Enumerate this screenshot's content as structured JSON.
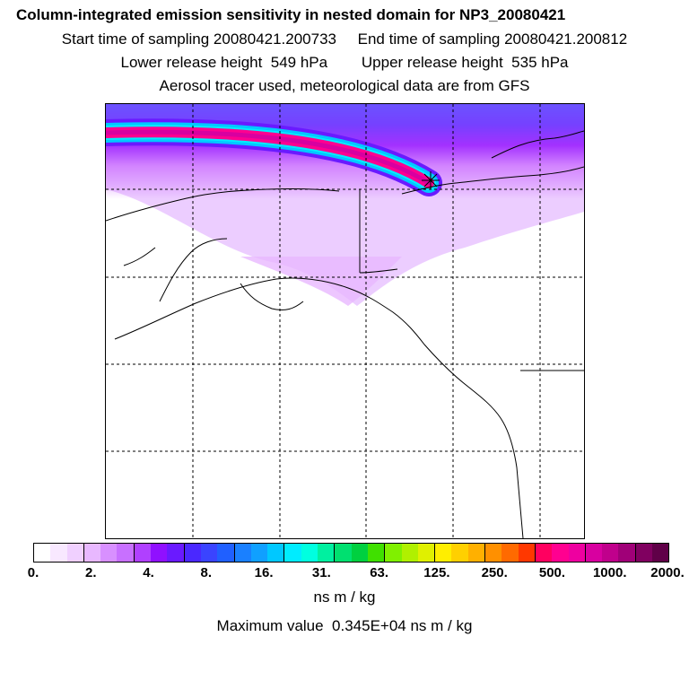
{
  "header": {
    "title": "Column-integrated emission sensitivity in nested domain for NP3_20080421",
    "line1": "Start time of sampling 20080421.200733     End time of sampling 20080421.200812",
    "line2": "Lower release height  549 hPa        Upper release height  535 hPa",
    "line3": "Aerosol tracer used, meteorological data are from GFS"
  },
  "colorbar": {
    "tick_labels": [
      "0.",
      "2.",
      "4.",
      "8.",
      "16.",
      "31.",
      "63.",
      "125.",
      "250.",
      "500.",
      "1000.",
      "2000."
    ],
    "colors": [
      "#ffffff",
      "#f8e8ff",
      "#f0d0ff",
      "#e8b8ff",
      "#d890ff",
      "#c870ff",
      "#b040ff",
      "#9010ff",
      "#6a1aff",
      "#4a28ff",
      "#3a44ff",
      "#2060ff",
      "#1a80ff",
      "#10a0ff",
      "#00c8ff",
      "#00ecff",
      "#00ffe0",
      "#00f0a0",
      "#00e070",
      "#00d040",
      "#40e000",
      "#80f000",
      "#b0f000",
      "#e0f000",
      "#ffee00",
      "#ffd000",
      "#ffb000",
      "#ff9000",
      "#ff6a00",
      "#ff3800",
      "#ff0060",
      "#ff0090",
      "#ee00a0",
      "#d800a0",
      "#c0008c",
      "#a00078",
      "#800060",
      "#600048"
    ],
    "unit": "ns m / kg"
  },
  "footer": {
    "max_value": "Maximum value  0.345E+04 ns m / kg"
  },
  "map": {
    "release_marker_icon": "star-asterisk-icon",
    "plume_colors": [
      "#d800a0",
      "#ff0090",
      "#00ecff",
      "#00c8ff",
      "#6a1aff"
    ]
  }
}
